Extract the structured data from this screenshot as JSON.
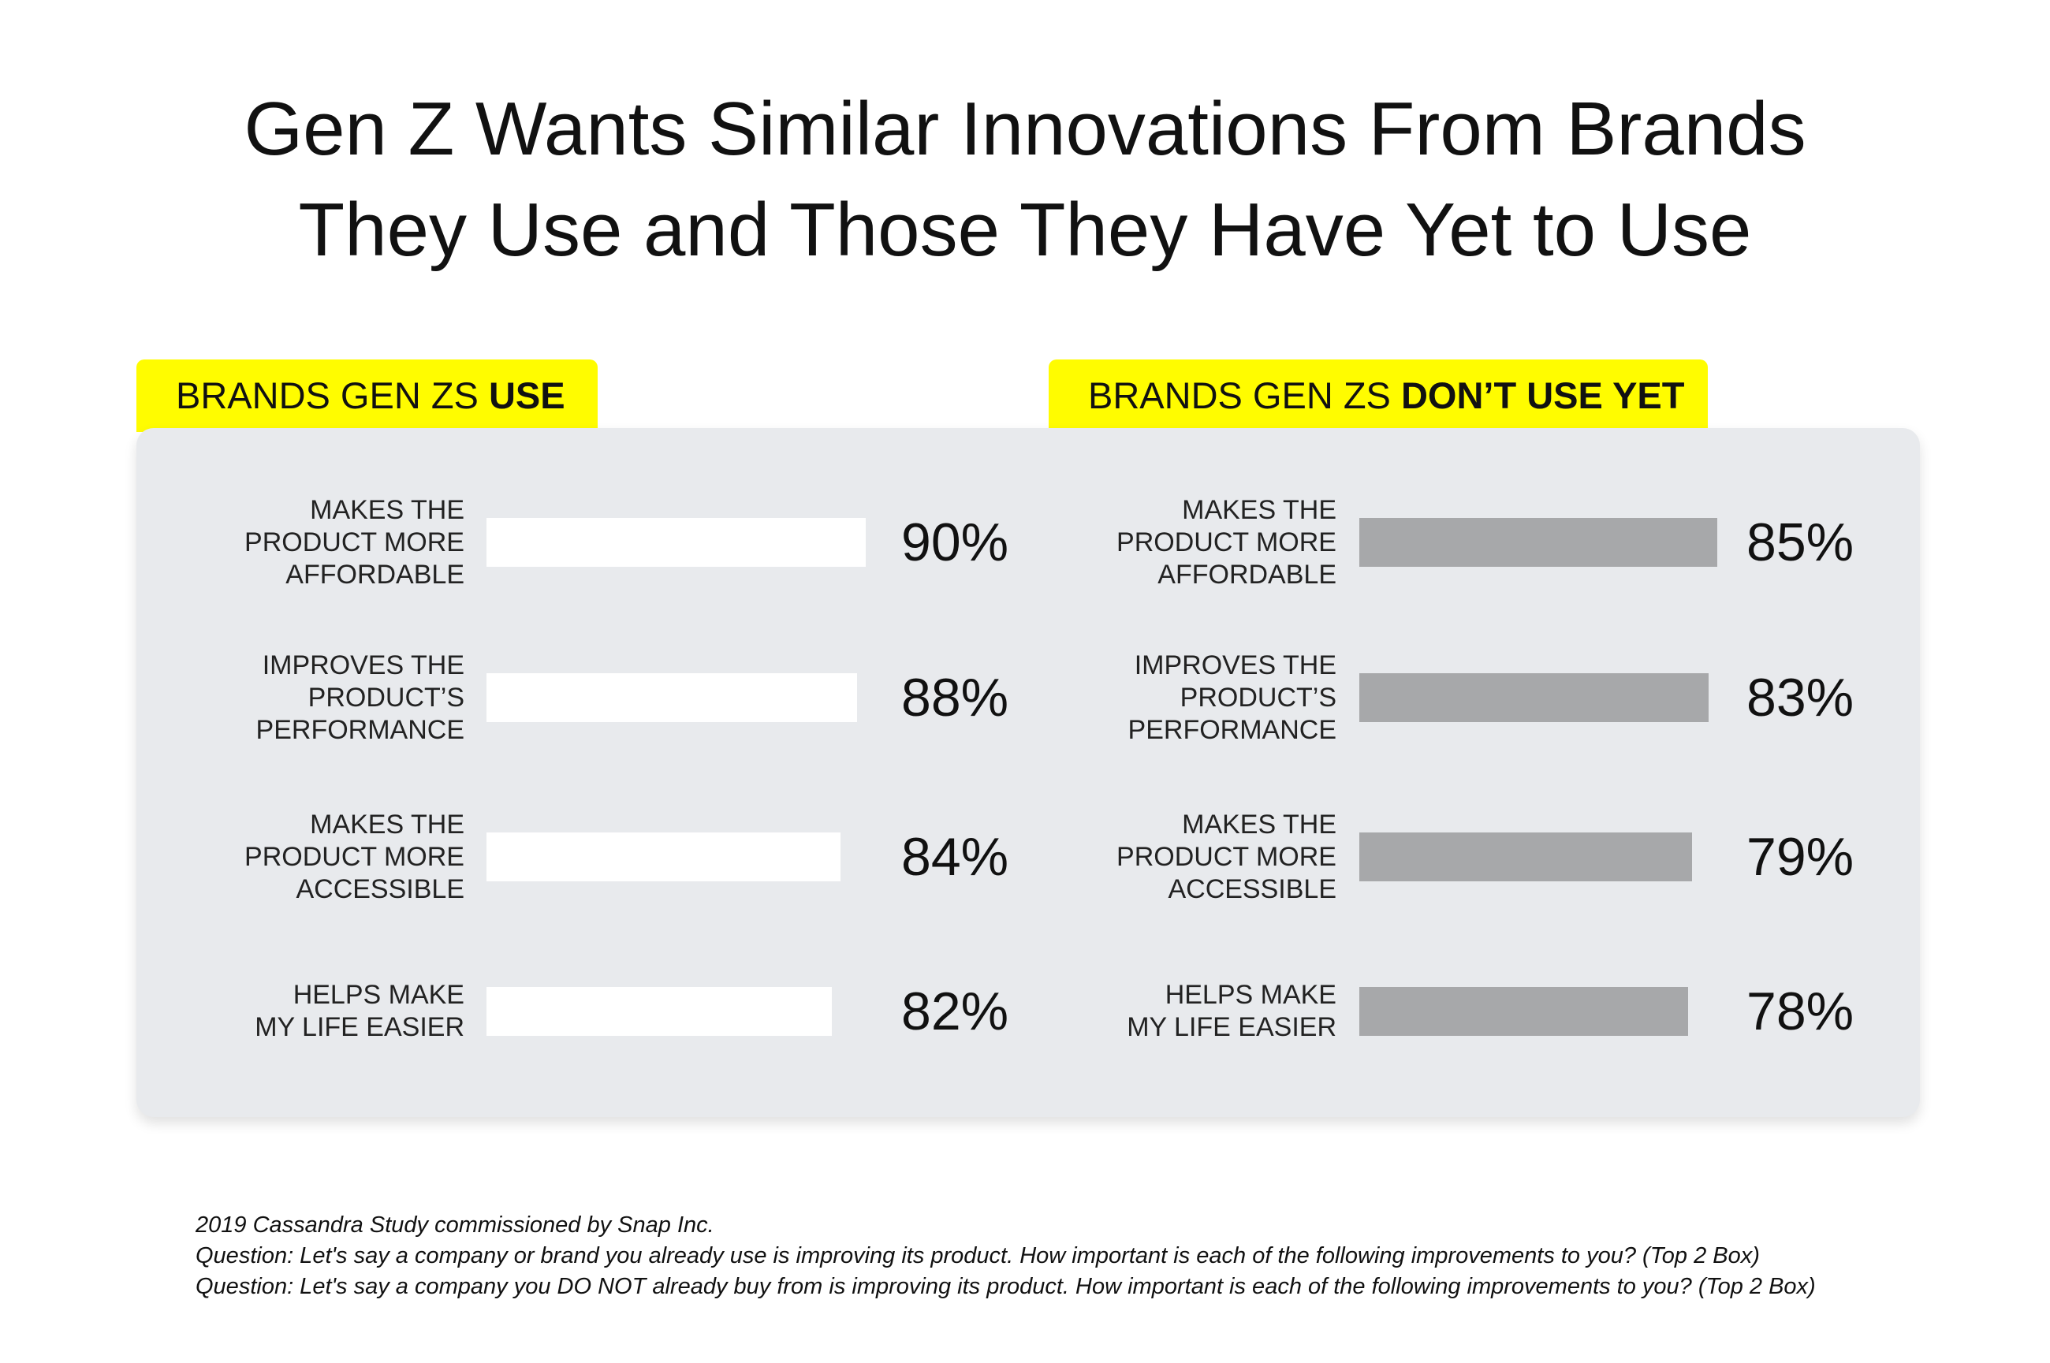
{
  "title": {
    "line1": "Gen Z Wants Similar Innovations From Brands",
    "line2": "They Use and Those They Have Yet to Use"
  },
  "colors": {
    "accent": "#fffc00",
    "panel": "#e8eaed",
    "bar_use": "#ffffff",
    "bar_dont_use": "#a7a8aa"
  },
  "chart_data": [
    {
      "type": "bar",
      "orientation": "horizontal",
      "heading_prefix": "BRANDS GEN ZS ",
      "heading_emphasis": "USE",
      "categories": [
        [
          "MAKES THE",
          "PRODUCT MORE",
          "AFFORDABLE"
        ],
        [
          "IMPROVES THE",
          "PRODUCT’S",
          "PERFORMANCE"
        ],
        [
          "MAKES THE",
          "PRODUCT MORE",
          "ACCESSIBLE"
        ],
        [
          "HELPS MAKE",
          "MY LIFE EASIER"
        ]
      ],
      "values": [
        90,
        88,
        84,
        82
      ],
      "value_labels": [
        "90%",
        "88%",
        "84%",
        "82%"
      ],
      "bar_color": "#ffffff",
      "xlim": [
        0,
        100
      ]
    },
    {
      "type": "bar",
      "orientation": "horizontal",
      "heading_prefix": "BRANDS GEN ZS ",
      "heading_emphasis": "DON’T USE YET",
      "categories": [
        [
          "MAKES THE",
          "PRODUCT MORE",
          "AFFORDABLE"
        ],
        [
          "IMPROVES THE",
          "PRODUCT’S",
          "PERFORMANCE"
        ],
        [
          "MAKES THE",
          "PRODUCT MORE",
          "ACCESSIBLE"
        ],
        [
          "HELPS MAKE",
          "MY LIFE EASIER"
        ]
      ],
      "values": [
        85,
        83,
        79,
        78
      ],
      "value_labels": [
        "85%",
        "83%",
        "79%",
        "78%"
      ],
      "bar_color": "#a7a8aa",
      "xlim": [
        0,
        100
      ]
    }
  ],
  "footer": {
    "source": "2019 Cassandra Study commissioned by Snap Inc.",
    "question1": "Question: Let's say a company or brand you already use is improving its product. How important is each of the following improvements to you? (Top 2 Box)",
    "question2": "Question: Let's say a company you DO NOT already buy from is improving its product. How important is each of the following improvements to you? (Top 2 Box)"
  }
}
